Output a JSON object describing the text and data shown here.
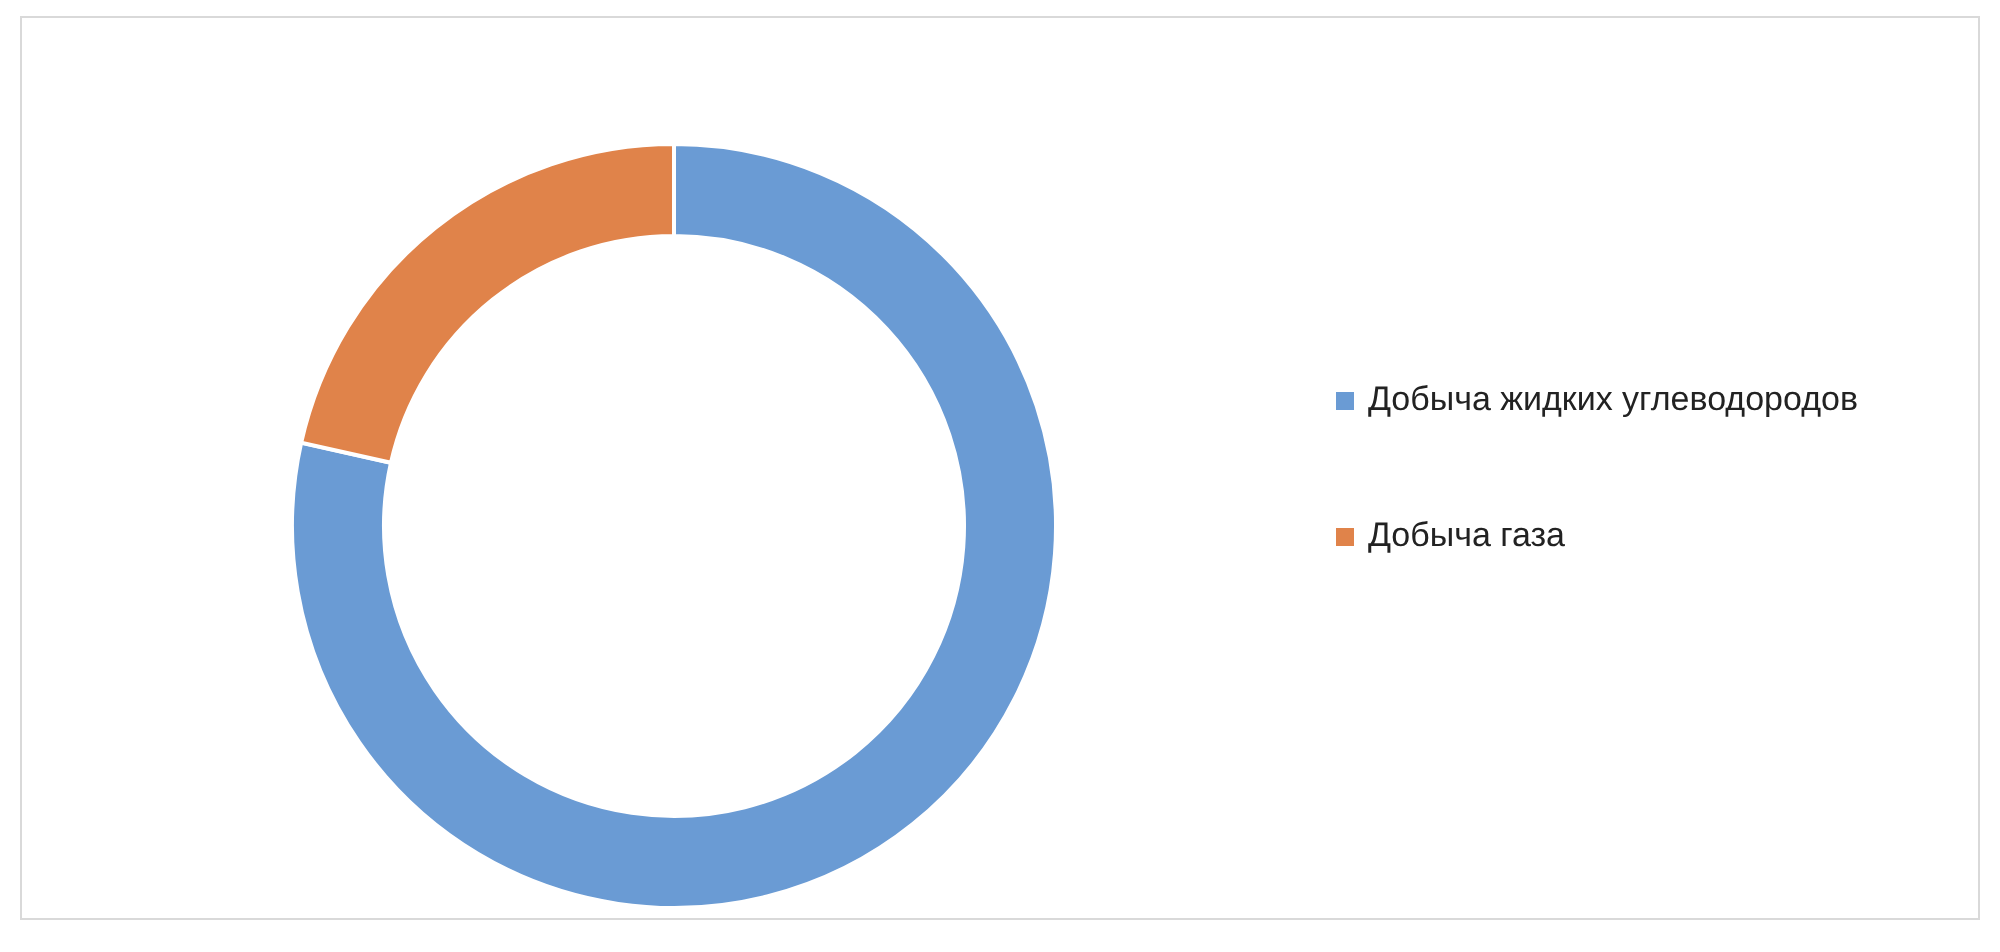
{
  "chart_data": {
    "type": "donut",
    "categories": [
      "Добыча жидких углеводородов",
      "Добыча газа"
    ],
    "values": [
      78.5,
      21.5
    ],
    "colors": [
      "#6a9bd4",
      "#e0834a"
    ],
    "legend": "right"
  }
}
